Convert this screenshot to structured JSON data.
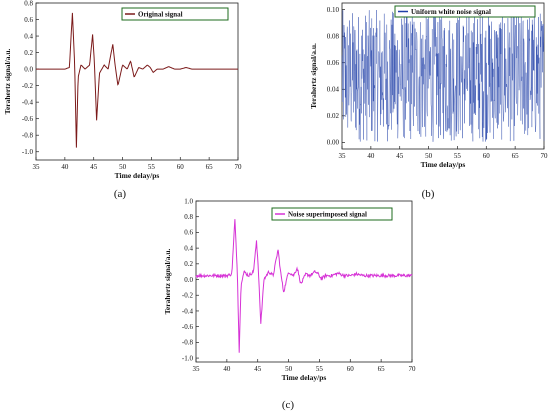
{
  "chart_data": [
    {
      "type": "line",
      "panel_label": "(a)",
      "xlabel": "Time delay/ps",
      "ylabel": "Terahertz signal/a.u.",
      "xlim": [
        35,
        70
      ],
      "ylim": [
        -1.1,
        0.8
      ],
      "xticks": [
        "35",
        "40",
        "45",
        "50",
        "55",
        "60",
        "65",
        "70"
      ],
      "yticks": [
        "-1.0",
        "-0.8",
        "-0.6",
        "-0.4",
        "-0.2",
        "0.0",
        "0.2",
        "0.4",
        "0.6",
        "0.8"
      ],
      "legend": "top-right",
      "color": "#7b1a1a",
      "series": [
        {
          "name": "Original signal",
          "x": [
            35,
            40,
            40.8,
            41.3,
            41.7,
            42.0,
            42.3,
            42.8,
            43.5,
            44.3,
            44.8,
            45.1,
            45.5,
            46.0,
            46.8,
            47.5,
            48.3,
            48.7,
            49.2,
            50.0,
            50.8,
            51.4,
            52.0,
            52.8,
            53.5,
            54.3,
            54.8,
            55.3,
            56.0,
            57.0,
            58.0,
            59.0,
            60.0,
            61.0,
            62.0,
            63.0,
            65.0,
            70
          ],
          "y": [
            0,
            0,
            0.02,
            0.68,
            0.05,
            -0.95,
            -0.1,
            0.05,
            0.0,
            0.05,
            0.42,
            0.1,
            -0.62,
            -0.05,
            0.05,
            0.0,
            0.3,
            0.05,
            -0.2,
            0.05,
            0.0,
            0.1,
            -0.1,
            0.02,
            0.0,
            0.05,
            0.02,
            -0.04,
            0.0,
            0.0,
            0.03,
            0.0,
            0.0,
            0.02,
            0.0,
            0.0,
            0.0,
            0
          ]
        }
      ]
    },
    {
      "type": "line",
      "panel_label": "(b)",
      "xlabel": "Time delay/ps",
      "ylabel": "Terahertz signal/a.u.",
      "xlim": [
        35,
        70
      ],
      "ylim": [
        -0.005,
        0.105
      ],
      "xticks": [
        "35",
        "40",
        "45",
        "50",
        "55",
        "60",
        "65",
        "70"
      ],
      "yticks": [
        "0.00",
        "0.02",
        "0.04",
        "0.06",
        "0.08",
        "0.10"
      ],
      "legend": "top-right",
      "color": "#1f3fa8",
      "series": [
        {
          "name": "Uniform white noise signal",
          "distribution": "uniform",
          "range": [
            0.0,
            0.1
          ],
          "points": 700
        }
      ]
    },
    {
      "type": "line",
      "panel_label": "(c)",
      "xlabel": "Time delay/ps",
      "ylabel": "Terahertz signal/a.u.",
      "xlim": [
        35,
        70
      ],
      "ylim": [
        -1.05,
        1.0
      ],
      "xticks": [
        "35",
        "40",
        "45",
        "50",
        "55",
        "60",
        "65",
        "70"
      ],
      "yticks": [
        "-1.0",
        "-0.8",
        "-0.6",
        "-0.4",
        "-0.2",
        "0.0",
        "0.2",
        "0.4",
        "0.6",
        "0.8",
        "1.0"
      ],
      "legend": "top-right",
      "color": "#d632d6",
      "series": [
        {
          "name": "Noise superimposed signal",
          "x": [
            35,
            40,
            40.8,
            41.3,
            41.7,
            42.0,
            42.3,
            42.8,
            43.5,
            44.3,
            44.8,
            45.1,
            45.5,
            46.0,
            46.8,
            47.5,
            48.3,
            48.7,
            49.2,
            50.0,
            50.8,
            51.4,
            52.0,
            52.8,
            53.5,
            54.3,
            54.8,
            55.3,
            56.0,
            57.0,
            58.0,
            59.0,
            60.0,
            61.0,
            62.0,
            63.0,
            65.0,
            70
          ],
          "y": [
            0.05,
            0.05,
            0.07,
            0.76,
            0.1,
            -0.93,
            -0.05,
            0.1,
            0.05,
            0.1,
            0.48,
            0.15,
            -0.57,
            0.0,
            0.1,
            0.05,
            0.38,
            0.1,
            -0.16,
            0.1,
            0.05,
            0.15,
            -0.06,
            0.07,
            0.05,
            0.1,
            0.07,
            0.01,
            0.05,
            0.05,
            0.08,
            0.05,
            0.05,
            0.07,
            0.05,
            0.05,
            0.05,
            0.05
          ],
          "noise_amplitude": 0.04
        }
      ]
    }
  ]
}
